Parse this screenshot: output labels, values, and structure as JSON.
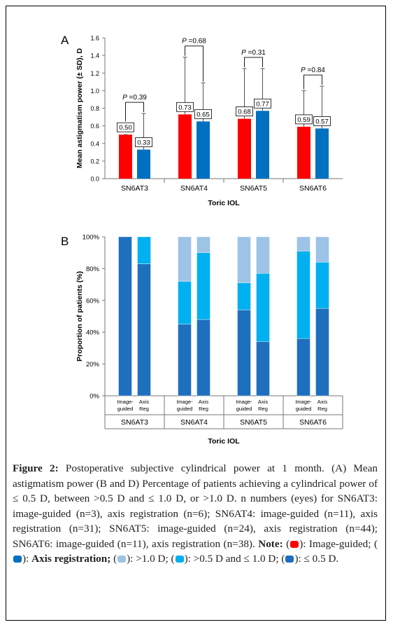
{
  "colors": {
    "image_guided": "#ff0000",
    "axis_registration": "#0070c0",
    "gt_1_0": "#9dc3e6",
    "between": "#00b0f0",
    "le_0_5": "#1f6fbf"
  },
  "chart_data": [
    {
      "panel": "A",
      "type": "bar",
      "ylabel": "Mean astigmatism power (± SD), D",
      "xlabel": "Toric IOL",
      "ylim": [
        0,
        1.6
      ],
      "yticks": [
        "0.0",
        "0.2",
        "0.4",
        "0.6",
        "0.8",
        "1.0",
        "1.2",
        "1.4",
        "1.6"
      ],
      "categories": [
        "SN6AT3",
        "SN6AT4",
        "SN6AT5",
        "SN6AT6"
      ],
      "series": [
        {
          "key": "image_guided",
          "values": [
            0.5,
            0.73,
            0.68,
            0.59
          ],
          "sd_upper": [
            0.5,
            1.38,
            1.25,
            1.0
          ],
          "labels": [
            "0.50",
            "0.73",
            "0.68",
            "0.59"
          ]
        },
        {
          "key": "axis_registration",
          "values": [
            0.33,
            0.65,
            0.77,
            0.57
          ],
          "sd_upper": [
            0.74,
            1.09,
            1.25,
            1.05
          ],
          "labels": [
            "0.33",
            "0.65",
            "0.77",
            "0.57"
          ]
        }
      ],
      "p_values": [
        "P =0.39",
        "P =0.68",
        "P =0.31",
        "P =0.84"
      ]
    },
    {
      "panel": "B",
      "type": "bar",
      "stacked": true,
      "ylabel": "Proportion of patients (%)",
      "xlabel": "Toric IOL",
      "ylim": [
        0,
        100
      ],
      "yticks": [
        "0%",
        "20%",
        "40%",
        "60%",
        "80%",
        "100%"
      ],
      "categories": [
        "SN6AT3",
        "SN6AT4",
        "SN6AT5",
        "SN6AT6"
      ],
      "bar_labels": [
        "Image-\nguided",
        "Axis\nReg"
      ],
      "bars": [
        {
          "category": "SN6AT3",
          "group": "Image-guided",
          "le_0_5": 100,
          "between": 0,
          "gt_1_0": 0
        },
        {
          "category": "SN6AT3",
          "group": "Axis Reg",
          "le_0_5": 83,
          "between": 17,
          "gt_1_0": 0
        },
        {
          "category": "SN6AT4",
          "group": "Image-guided",
          "le_0_5": 45,
          "between": 27,
          "gt_1_0": 28
        },
        {
          "category": "SN6AT4",
          "group": "Axis Reg",
          "le_0_5": 48,
          "between": 42,
          "gt_1_0": 10
        },
        {
          "category": "SN6AT5",
          "group": "Image-guided",
          "le_0_5": 54,
          "between": 17,
          "gt_1_0": 29
        },
        {
          "category": "SN6AT5",
          "group": "Axis Reg",
          "le_0_5": 34,
          "between": 43,
          "gt_1_0": 23
        },
        {
          "category": "SN6AT6",
          "group": "Image-guided",
          "le_0_5": 36,
          "between": 55,
          "gt_1_0": 9
        },
        {
          "category": "SN6AT6",
          "group": "Axis Reg",
          "le_0_5": 55,
          "between": 29,
          "gt_1_0": 16
        }
      ]
    }
  ],
  "caption": {
    "figure_label": "Figure 2:",
    "text1": " Postoperative subjective cylindrical power at 1 month. (A) Mean astigmatism power (B and D) Percentage of patients achieving a cylindrical power of ≤ 0.5 D, between  >0.5 D and ≤ 1.0 D, or >1.0 D. n numbers (eyes) for SN6AT3: image-guided (n=3), axis registration (n=6); SN6AT4: image-guided (n=11), axis registration (n=31); SN6AT5: image-guided (n=24), axis registration (n=44); SN6AT6: image-guided (n=11), axis registration (n=38). ",
    "note_label": "Note:",
    "legend": [
      {
        "pre": " (",
        "post": "): Image-guided; ",
        "key": "image_guided"
      },
      {
        "pre": "(",
        "post": "): ",
        "key": "axis_registration",
        "bold": "Axis registration;"
      },
      {
        "pre": " (",
        "post": "): >1.0 D; ",
        "key": "gt_1_0"
      },
      {
        "pre": "(",
        "post": "): >0.5 D and ≤ 1.0 D; ",
        "key": "between"
      },
      {
        "pre": "(",
        "post": "): ≤ 0.5 D.",
        "key": "le_0_5"
      }
    ]
  }
}
